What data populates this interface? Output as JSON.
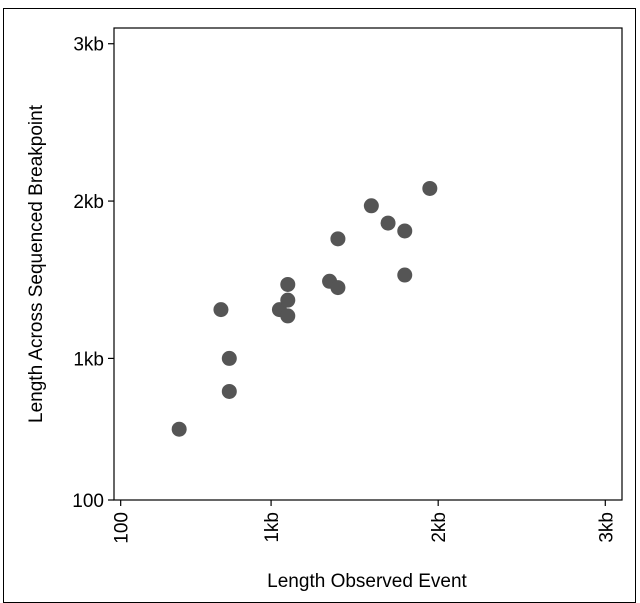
{
  "chart_data": {
    "type": "scatter",
    "xlabel": "Length Observed Event",
    "ylabel": "Length Across Sequenced Breakpoint",
    "x_ticks": [
      {
        "value": 100,
        "label": "100"
      },
      {
        "value": 1000,
        "label": "1kb"
      },
      {
        "value": 2000,
        "label": "2kb"
      },
      {
        "value": 3000,
        "label": "3kb"
      }
    ],
    "y_ticks": [
      {
        "value": 100,
        "label": "100"
      },
      {
        "value": 1000,
        "label": "1kb"
      },
      {
        "value": 2000,
        "label": "2kb"
      },
      {
        "value": 3000,
        "label": "3kb"
      }
    ],
    "xlim": [
      60,
      3100
    ],
    "ylim": [
      100,
      3100
    ],
    "grid": false,
    "marker_color": "#555555",
    "points": [
      {
        "x": 450,
        "y": 550
      },
      {
        "x": 700,
        "y": 1310
      },
      {
        "x": 750,
        "y": 1000
      },
      {
        "x": 750,
        "y": 790
      },
      {
        "x": 1050,
        "y": 1310
      },
      {
        "x": 1100,
        "y": 1270
      },
      {
        "x": 1100,
        "y": 1370
      },
      {
        "x": 1100,
        "y": 1470
      },
      {
        "x": 1350,
        "y": 1490
      },
      {
        "x": 1400,
        "y": 1450
      },
      {
        "x": 1400,
        "y": 1760
      },
      {
        "x": 1600,
        "y": 1970
      },
      {
        "x": 1700,
        "y": 1860
      },
      {
        "x": 1800,
        "y": 1810
      },
      {
        "x": 1800,
        "y": 1530
      },
      {
        "x": 1950,
        "y": 2080
      }
    ]
  }
}
